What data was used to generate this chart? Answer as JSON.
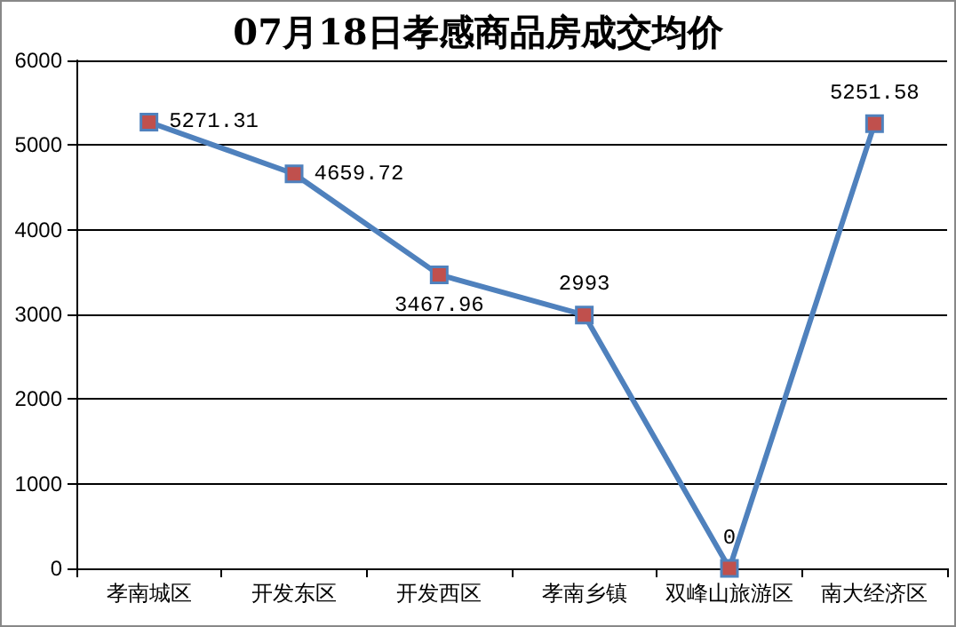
{
  "chart_data": {
    "type": "line",
    "title": "07月18日孝感商品房成交均价",
    "categories": [
      "孝南城区",
      "开发东区",
      "开发西区",
      "孝南乡镇",
      "双峰山旅游区",
      "南大经济区"
    ],
    "series": [
      {
        "color": "#4f81bd",
        "values": [
          5271.31,
          4659.72,
          3467.96,
          2993,
          0,
          5251.58
        ]
      }
    ],
    "ylim": [
      0,
      6000
    ],
    "yticks": [
      0,
      1000,
      2000,
      3000,
      4000,
      5000,
      6000
    ],
    "grid": "y",
    "marker": "square",
    "data_labels": true
  }
}
